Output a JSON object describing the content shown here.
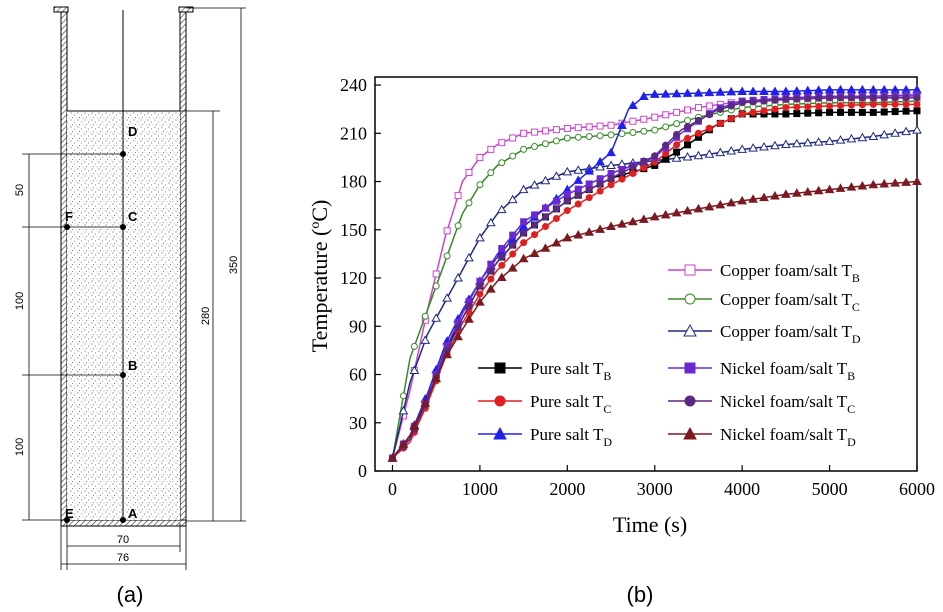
{
  "panel_a": {
    "caption": "(a)",
    "points": [
      "D",
      "F",
      "C",
      "B",
      "E",
      "A"
    ],
    "dimensions": {
      "left": [
        "50",
        "100",
        "100"
      ],
      "right_inner": "280",
      "right_outer": "350",
      "bottom_inner": "70",
      "bottom_outer": "76"
    }
  },
  "panel_b": {
    "caption": "(b)"
  },
  "chart_data": {
    "type": "line",
    "xlabel": "Time (s)",
    "ylabel_main": "Temperature (",
    "ylabel_sup": "o",
    "ylabel_tail": "C)",
    "xlim": [
      -200,
      6000
    ],
    "ylim": [
      0,
      245
    ],
    "xticks": [
      0,
      1000,
      2000,
      3000,
      4000,
      5000,
      6000
    ],
    "yticks": [
      0,
      30,
      60,
      90,
      120,
      150,
      180,
      210,
      240
    ],
    "grid": false,
    "series": [
      {
        "name": "Copper foam/salt",
        "sub": "B",
        "color": "#cc44cc",
        "marker": "square",
        "filled": false,
        "x": [
          0,
          200,
          400,
          600,
          800,
          1000,
          1200,
          1500,
          2000,
          2500,
          3000,
          3500,
          4000,
          4500,
          5000,
          5500,
          6000
        ],
        "y": [
          8,
          50,
          100,
          145,
          180,
          195,
          203,
          210,
          213,
          215,
          220,
          226,
          230,
          231,
          232,
          232,
          233
        ]
      },
      {
        "name": "Copper foam/salt",
        "sub": "C",
        "color": "#3a8a2a",
        "marker": "circle",
        "filled": false,
        "x": [
          0,
          200,
          400,
          600,
          800,
          1000,
          1200,
          1500,
          2000,
          2500,
          3000,
          3500,
          4000,
          4500,
          5000,
          5500,
          6000
        ],
        "y": [
          8,
          70,
          100,
          130,
          160,
          178,
          190,
          200,
          207,
          209,
          212,
          220,
          226,
          228,
          229,
          229,
          230
        ]
      },
      {
        "name": "Copper foam/salt",
        "sub": "D",
        "color": "#1f2a80",
        "marker": "triangle",
        "filled": false,
        "x": [
          0,
          200,
          400,
          600,
          800,
          1000,
          1200,
          1500,
          2000,
          2500,
          3000,
          3500,
          4000,
          4500,
          5000,
          5500,
          6000
        ],
        "y": [
          8,
          55,
          85,
          105,
          125,
          145,
          160,
          175,
          186,
          190,
          193,
          196,
          200,
          203,
          205,
          208,
          212
        ]
      },
      {
        "name": "Pure salt",
        "sub": "B",
        "color": "#000000",
        "marker": "square",
        "filled": true,
        "x": [
          0,
          200,
          400,
          600,
          800,
          1000,
          1200,
          1500,
          2000,
          2500,
          3000,
          3300,
          3700,
          4000,
          4500,
          5000,
          5500,
          6000
        ],
        "y": [
          8,
          20,
          45,
          75,
          95,
          115,
          130,
          148,
          168,
          182,
          190,
          200,
          215,
          222,
          222,
          223,
          223,
          224
        ]
      },
      {
        "name": "Pure salt",
        "sub": "C",
        "color": "#e02020",
        "marker": "circle",
        "filled": true,
        "x": [
          0,
          200,
          400,
          600,
          800,
          1000,
          1200,
          1500,
          2000,
          2500,
          3000,
          3300,
          3700,
          4000,
          4500,
          5000,
          5500,
          6000
        ],
        "y": [
          8,
          18,
          42,
          70,
          92,
          110,
          125,
          142,
          162,
          178,
          192,
          205,
          215,
          222,
          226,
          227,
          228,
          228
        ]
      },
      {
        "name": "Pure salt",
        "sub": "D",
        "color": "#2020ee",
        "marker": "triangle",
        "filled": true,
        "x": [
          0,
          200,
          400,
          600,
          800,
          1000,
          1200,
          1500,
          2000,
          2500,
          2700,
          2900,
          3500,
          4000,
          4500,
          5000,
          5500,
          6000
        ],
        "y": [
          8,
          22,
          48,
          78,
          100,
          118,
          133,
          152,
          175,
          198,
          225,
          234,
          235,
          236,
          236,
          237,
          237,
          237
        ]
      },
      {
        "name": "Nickel foam/salt",
        "sub": "B",
        "color": "#6a2ad0",
        "marker": "square",
        "filled": true,
        "x": [
          0,
          200,
          400,
          600,
          800,
          1000,
          1200,
          1500,
          2000,
          2500,
          3000,
          3300,
          3700,
          4000,
          4500,
          5000,
          5500,
          6000
        ],
        "y": [
          8,
          22,
          45,
          75,
          98,
          118,
          135,
          155,
          172,
          185,
          195,
          210,
          225,
          230,
          232,
          233,
          233,
          234
        ]
      },
      {
        "name": "Nickel foam/salt",
        "sub": "C",
        "color": "#5a2a80",
        "marker": "circle",
        "filled": true,
        "x": [
          0,
          200,
          400,
          600,
          800,
          1000,
          1200,
          1500,
          2000,
          2500,
          3000,
          3300,
          3700,
          4000,
          4500,
          5000,
          5500,
          6000
        ],
        "y": [
          8,
          20,
          44,
          72,
          95,
          115,
          130,
          148,
          168,
          182,
          196,
          212,
          224,
          229,
          231,
          232,
          232,
          232
        ]
      },
      {
        "name": "Nickel foam/salt",
        "sub": "D",
        "color": "#7a1a20",
        "marker": "triangle",
        "filled": true,
        "x": [
          0,
          200,
          400,
          600,
          800,
          1000,
          1200,
          1500,
          2000,
          2500,
          3000,
          3500,
          4000,
          4500,
          5000,
          5500,
          6000
        ],
        "y": [
          8,
          22,
          45,
          70,
          88,
          105,
          118,
          132,
          145,
          152,
          158,
          163,
          168,
          172,
          175,
          178,
          180
        ]
      }
    ]
  }
}
